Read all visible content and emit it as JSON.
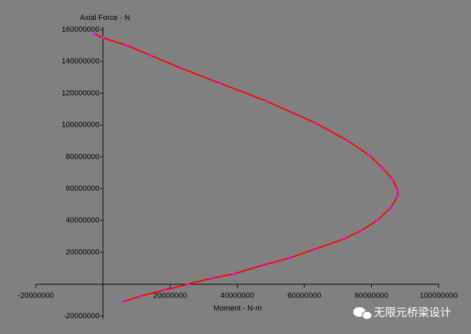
{
  "chart_data": {
    "type": "line",
    "y_label": "Axial Force - N",
    "x_label": "Moment - N-m",
    "xlim": [
      -20000000,
      100000000
    ],
    "xticks": [
      -20000000,
      20000000,
      40000000,
      60000000,
      80000000,
      100000000
    ],
    "ylim": [
      -20000000,
      160000000
    ],
    "yticks": [
      -20000000,
      20000000,
      40000000,
      60000000,
      80000000,
      100000000,
      120000000,
      140000000,
      160000000
    ],
    "series": [
      {
        "color": "#ff0000",
        "marker_color": "#ff00ff",
        "x": [
          -2500000,
          0,
          7200000,
          14000000,
          23200000,
          34900000,
          48800000,
          63400000,
          72800000,
          79200000,
          83300000,
          86200000,
          87800000,
          87800000,
          85700000,
          81800000,
          76900000,
          71800000,
          63000000,
          55400000,
          47800000,
          39000000,
          32800000,
          25200000,
          18500000,
          11300000,
          6200000
        ],
        "values": [
          157400000,
          154800000,
          150000000,
          144000000,
          135800000,
          126300000,
          115000000,
          101200000,
          90400000,
          81300000,
          73100000,
          66200000,
          59200000,
          55400000,
          48000000,
          40200000,
          33700000,
          28500000,
          22000000,
          16400000,
          12100000,
          6500000,
          3900000,
          0,
          -3500000,
          -7400000,
          -10800000
        ]
      }
    ],
    "watermark": "无限元桥梁设计"
  }
}
